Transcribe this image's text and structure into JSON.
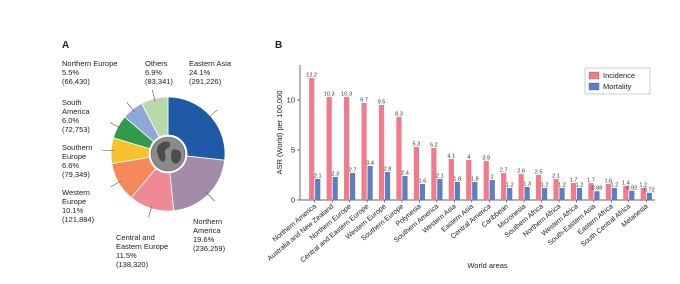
{
  "chart_data": [
    {
      "type": "donut",
      "label": "A",
      "categories": [
        "Eastern Asia",
        "Northern America",
        "Central and Eastern Europe",
        "Western Europe",
        "Southern Europe",
        "South America",
        "Northern Europe",
        "Others"
      ],
      "values": [
        291226,
        236259,
        138320,
        121884,
        79349,
        72753,
        66430,
        83341
      ],
      "value_labels": [
        "(291,226)",
        "(236,259)",
        "(138,320)",
        "(121,884)",
        "(79,349)",
        "(72,753)",
        "(66,430)",
        "(83,341)"
      ],
      "percents": [
        24.1,
        19.6,
        11.5,
        10.1,
        6.6,
        6.0,
        5.5,
        6.9
      ],
      "percent_labels": [
        "24.1%",
        "19.6%",
        "11.5%",
        "10.1%",
        "6.6%",
        "6.0%",
        "5.5%",
        "6.9%"
      ],
      "colors": [
        "#1f5aa6",
        "#a38ba9",
        "#f08996",
        "#f5895a",
        "#f8c22f",
        "#2f9c4b",
        "#8fa7d9",
        "#b8d9a9"
      ]
    },
    {
      "type": "bar",
      "label": "B",
      "categories": [
        "Northern America",
        "Australia and New Zealand",
        "Northern Europe",
        "Central and Eastern Europe",
        "Western Europe",
        "Southern Europe",
        "Polynesia",
        "Southern America",
        "Western Asia",
        "Eastern Asia",
        "Central America",
        "Caribbean",
        "Micronesia",
        "Southern Africa",
        "Northern Africa",
        "Western Africa",
        "South-Eastern Asia",
        "Eastern Africa",
        "South Central Africa",
        "Melanesia"
      ],
      "series": [
        {
          "name": "Incidence",
          "color": "#f17b8b",
          "values": [
            12.2,
            10.3,
            10.3,
            9.7,
            9.5,
            8.3,
            5.3,
            5.2,
            4.1,
            4,
            3.9,
            2.7,
            2.6,
            2.5,
            2.1,
            1.7,
            1.7,
            1.6,
            1.4,
            1.2
          ]
        },
        {
          "name": "Mortality",
          "color": "#5a7fc3",
          "values": [
            2.1,
            2.3,
            2.7,
            3.4,
            2.8,
            2.4,
            1.6,
            2.1,
            1.8,
            1.8,
            2,
            1.2,
            1.3,
            1.2,
            1.2,
            1.2,
            0.88,
            1.2,
            0.92,
            0.72
          ]
        }
      ],
      "y_label": "ASR (World) per 100,000",
      "x_label": "World areas",
      "ylim": [
        0,
        13.5
      ],
      "yticks": [
        0,
        5,
        10
      ],
      "legend": "top-right"
    }
  ]
}
